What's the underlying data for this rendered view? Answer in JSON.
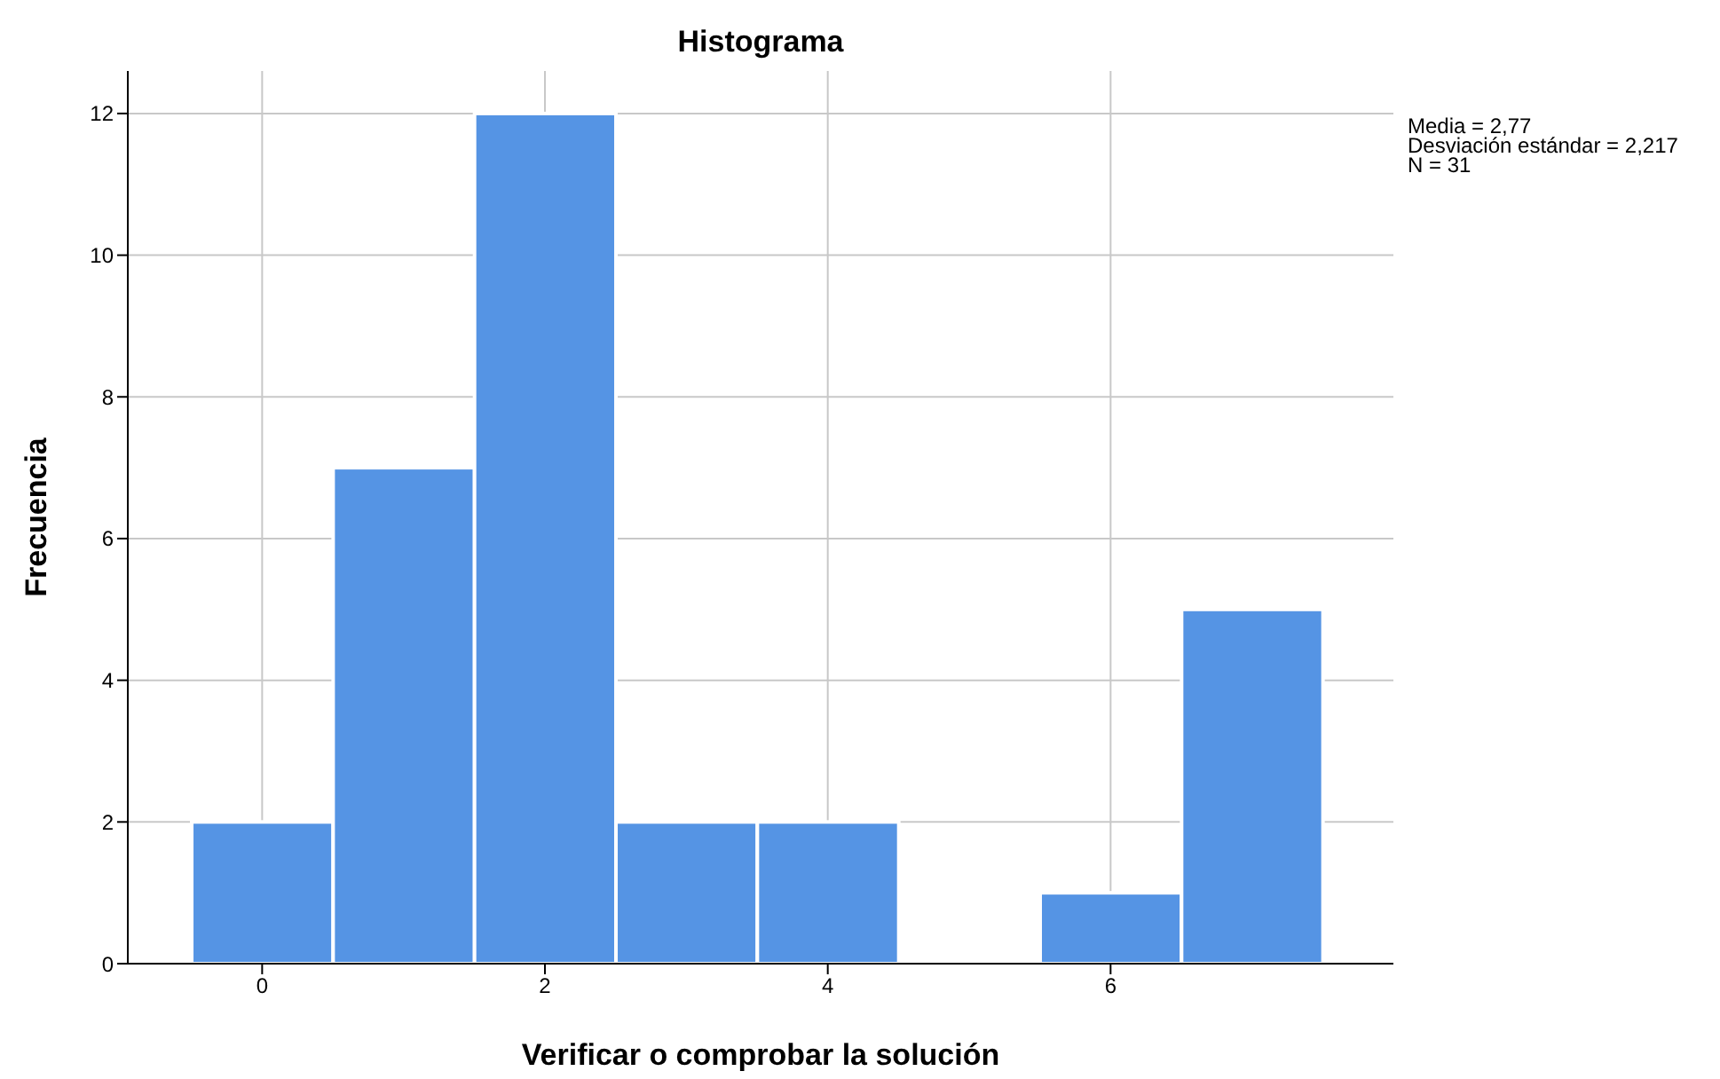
{
  "chart_data": {
    "type": "histogram",
    "title": "Histograma",
    "xlabel": "Verificar o comprobar la solución",
    "ylabel": "Frecuencia",
    "bins": [
      -0.5,
      0.5,
      1.5,
      2.5,
      3.5,
      4.5,
      5.5,
      6.5,
      7.5
    ],
    "values": [
      2,
      7,
      12,
      2,
      2,
      0,
      1,
      5
    ],
    "color": "#5594e4",
    "xlim": [
      -0.95,
      8
    ],
    "xticks": [
      0,
      2,
      4,
      6
    ],
    "ylim": [
      0,
      12.6
    ],
    "yticks": [
      0,
      2,
      4,
      6,
      8,
      10,
      12
    ],
    "grid": true,
    "annotations": [
      "Media = 2,77",
      "Desviación estándar = 2,217",
      "N = 31"
    ]
  }
}
